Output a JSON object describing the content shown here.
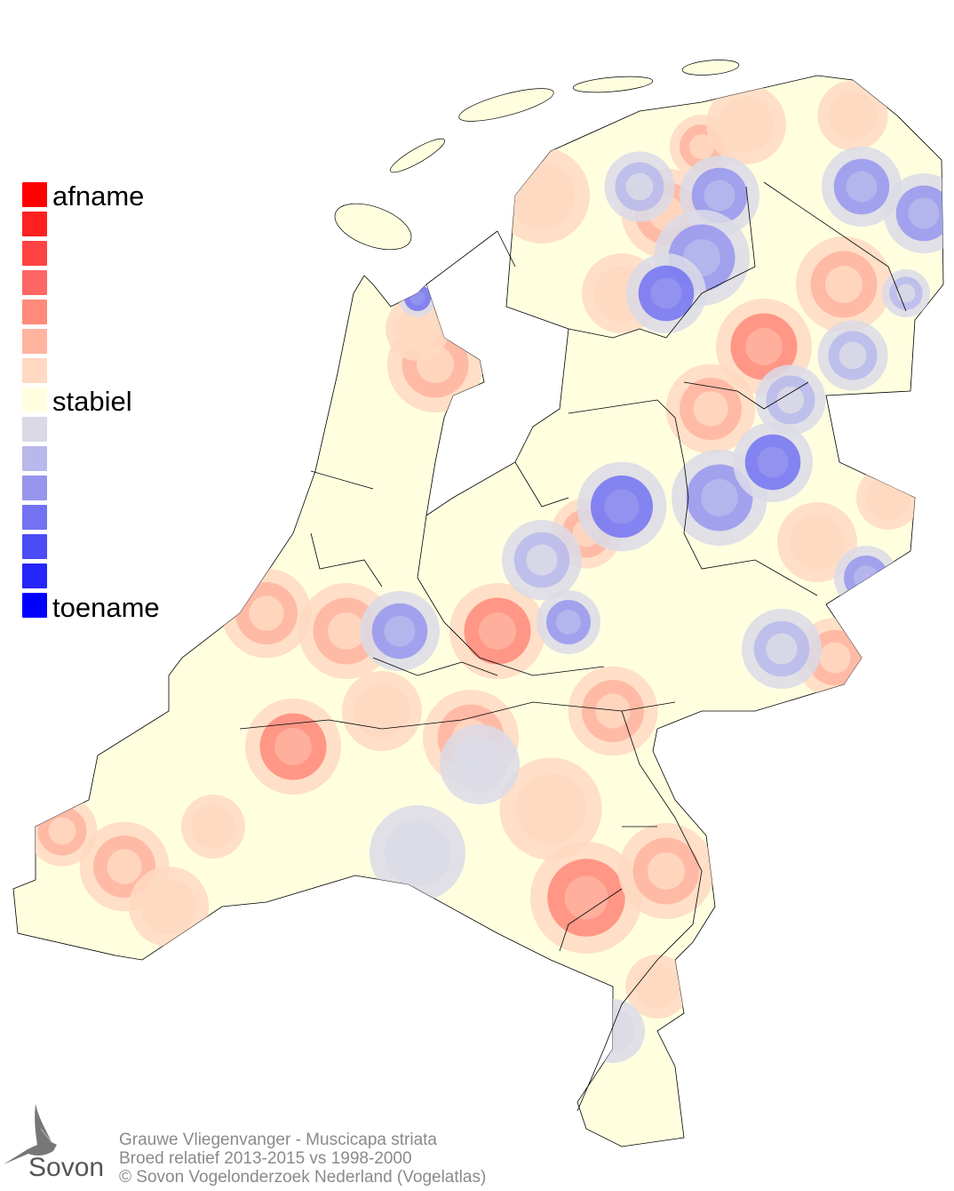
{
  "legend": {
    "top_label": "afname",
    "middle_label": "stabiel",
    "bottom_label": "toename",
    "colors": [
      "#ff0000",
      "#ff2121",
      "#ff4242",
      "#ff6666",
      "#ff8a7a",
      "#ffb4a0",
      "#ffd9c2",
      "#ffffe0",
      "#dadae6",
      "#b8b8ec",
      "#9595ee",
      "#7272f2",
      "#4b4bf8",
      "#2525fc",
      "#0000ff"
    ]
  },
  "map": {
    "region": "Nederland",
    "base_color": "#ffffe0",
    "increase_color": "#0000ff",
    "decrease_color": "#ff0000"
  },
  "footer": {
    "line1": "Grauwe Vliegenvanger - Muscicapa striata",
    "line2": "Broed relatief 2013-2015 vs 1998-2000",
    "line3": "© Sovon Vogelonderzoek Nederland (Vogelatlas)"
  },
  "logo": {
    "text": "Sovon"
  }
}
